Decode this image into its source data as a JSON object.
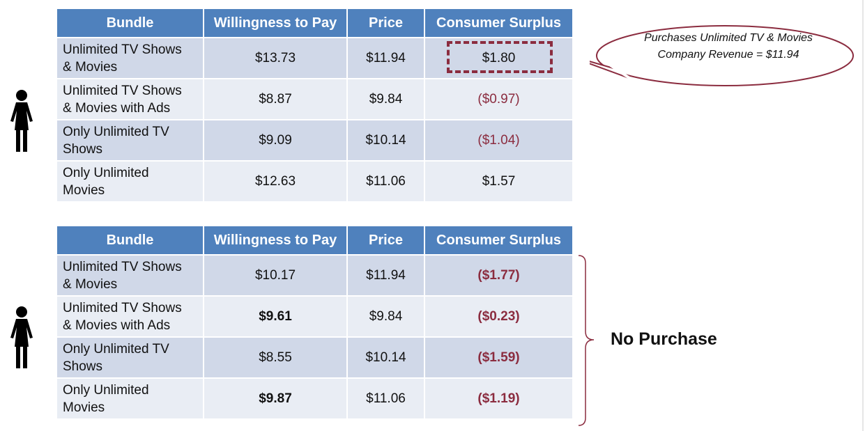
{
  "headers": {
    "bundle": "Bundle",
    "wtp": "Willingness to Pay",
    "price": "Price",
    "surplus": "Consumer Surplus"
  },
  "table1": {
    "rows": [
      {
        "bundle_l1": "Unlimited TV Shows",
        "bundle_l2": "& Movies",
        "wtp": "$13.73",
        "price": "$11.94",
        "surplus": "$1.80"
      },
      {
        "bundle_l1": "Unlimited TV Shows",
        "bundle_l2": "& Movies with Ads",
        "wtp": "$8.87",
        "price": "$9.84",
        "surplus": "($0.97)"
      },
      {
        "bundle_l1": "Only Unlimited TV",
        "bundle_l2": "Shows",
        "wtp": "$9.09",
        "price": "$10.14",
        "surplus": "($1.04)"
      },
      {
        "bundle_l1": "Only Unlimited",
        "bundle_l2": "Movies",
        "wtp": "$12.63",
        "price": "$11.06",
        "surplus": "$1.57"
      }
    ]
  },
  "table2": {
    "rows": [
      {
        "bundle_l1": "Unlimited TV Shows",
        "bundle_l2": "& Movies",
        "wtp": "$10.17",
        "price": "$11.94",
        "surplus": "($1.77)"
      },
      {
        "bundle_l1": "Unlimited TV Shows",
        "bundle_l2": "& Movies with Ads",
        "wtp": "$9.61",
        "price": "$9.84",
        "surplus": "($0.23)"
      },
      {
        "bundle_l1": "Only Unlimited TV",
        "bundle_l2": "Shows",
        "wtp": "$8.55",
        "price": "$10.14",
        "surplus": "($1.59)"
      },
      {
        "bundle_l1": "Only Unlimited",
        "bundle_l2": "Movies",
        "wtp": "$9.87",
        "price": "$11.06",
        "surplus": "($1.19)"
      }
    ]
  },
  "callout": {
    "line1": "Purchases Unlimited TV & Movies",
    "line2": "Company Revenue = $11.94"
  },
  "no_purchase": "No Purchase",
  "colors": {
    "header_bg": "#4f81bd",
    "row_dark": "#d0d8e8",
    "row_light": "#e9edf4",
    "negative": "#8b2c3f"
  },
  "icons": [
    "person-icon",
    "person-icon"
  ]
}
